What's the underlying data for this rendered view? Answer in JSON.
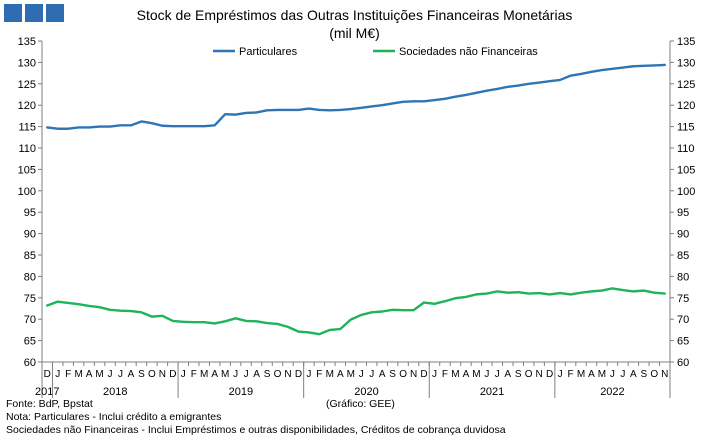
{
  "header": {
    "title_line1": "Stock de Empréstimos das Outras Instituições Financeiras Monetárias",
    "title_line2": "(mil M€)"
  },
  "footer": {
    "source": "Fonte: BdP, Bpstat",
    "note1": "Nota: Particulares - Inclui crédito a emigrantes",
    "note2": "Sociedades não Financeiras - Inclui Empréstimos e outras disponibilidades, Créditos de cobrança duvidosa",
    "credit": "(Gráfico: GEE)"
  },
  "chart_data": {
    "type": "line",
    "ylim": [
      60,
      135
    ],
    "y_ticks": [
      60,
      65,
      70,
      75,
      80,
      85,
      90,
      95,
      100,
      105,
      110,
      115,
      120,
      125,
      130,
      135
    ],
    "grid": false,
    "legend_position": "top",
    "month_labels": [
      "D",
      "J",
      "F",
      "M",
      "A",
      "M",
      "J",
      "J",
      "A",
      "S",
      "O",
      "N",
      "D",
      "J",
      "F",
      "M",
      "A",
      "M",
      "J",
      "J",
      "A",
      "S",
      "O",
      "N",
      "D",
      "J",
      "F",
      "M",
      "A",
      "M",
      "J",
      "J",
      "A",
      "S",
      "O",
      "N",
      "D",
      "J",
      "F",
      "M",
      "A",
      "M",
      "J",
      "J",
      "A",
      "S",
      "O",
      "N",
      "D",
      "J",
      "F",
      "M",
      "A",
      "M",
      "J",
      "J",
      "A",
      "S",
      "O",
      "N"
    ],
    "year_labels": [
      {
        "label": "2017",
        "start": 0,
        "end": 0
      },
      {
        "label": "2018",
        "start": 1,
        "end": 12
      },
      {
        "label": "2019",
        "start": 13,
        "end": 24
      },
      {
        "label": "2020",
        "start": 25,
        "end": 36
      },
      {
        "label": "2021",
        "start": 37,
        "end": 48
      },
      {
        "label": "2022",
        "start": 49,
        "end": 59
      }
    ],
    "series": [
      {
        "name": "Particulares",
        "color": "#2e75b6",
        "values": [
          114.8,
          114.5,
          114.5,
          114.8,
          114.8,
          115.0,
          115.0,
          115.3,
          115.3,
          116.2,
          115.8,
          115.2,
          115.1,
          115.1,
          115.1,
          115.1,
          115.3,
          117.9,
          117.8,
          118.2,
          118.3,
          118.8,
          118.9,
          118.9,
          118.9,
          119.2,
          118.9,
          118.8,
          118.9,
          119.1,
          119.4,
          119.7,
          120.0,
          120.4,
          120.8,
          120.9,
          120.9,
          121.2,
          121.5,
          122.0,
          122.4,
          122.9,
          123.4,
          123.8,
          124.3,
          124.6,
          125.0,
          125.3,
          125.6,
          125.9,
          126.9,
          127.3,
          127.8,
          128.2,
          128.5,
          128.8,
          129.1,
          129.2,
          129.3,
          129.4
        ]
      },
      {
        "name": "Sociedades não Financeiras",
        "color": "#1fb35a",
        "values": [
          73.2,
          74.1,
          73.8,
          73.5,
          73.1,
          72.8,
          72.2,
          72.0,
          71.9,
          71.6,
          70.6,
          70.8,
          69.6,
          69.4,
          69.3,
          69.3,
          69.0,
          69.5,
          70.2,
          69.6,
          69.5,
          69.1,
          68.9,
          68.2,
          67.1,
          66.9,
          66.5,
          67.5,
          67.7,
          69.9,
          71.0,
          71.6,
          71.8,
          72.2,
          72.1,
          72.1,
          73.9,
          73.6,
          74.2,
          74.9,
          75.2,
          75.8,
          76.0,
          76.5,
          76.2,
          76.3,
          76.0,
          76.1,
          75.8,
          76.1,
          75.8,
          76.2,
          76.5,
          76.7,
          77.2,
          76.8,
          76.5,
          76.7,
          76.2,
          76.0
        ]
      }
    ]
  }
}
